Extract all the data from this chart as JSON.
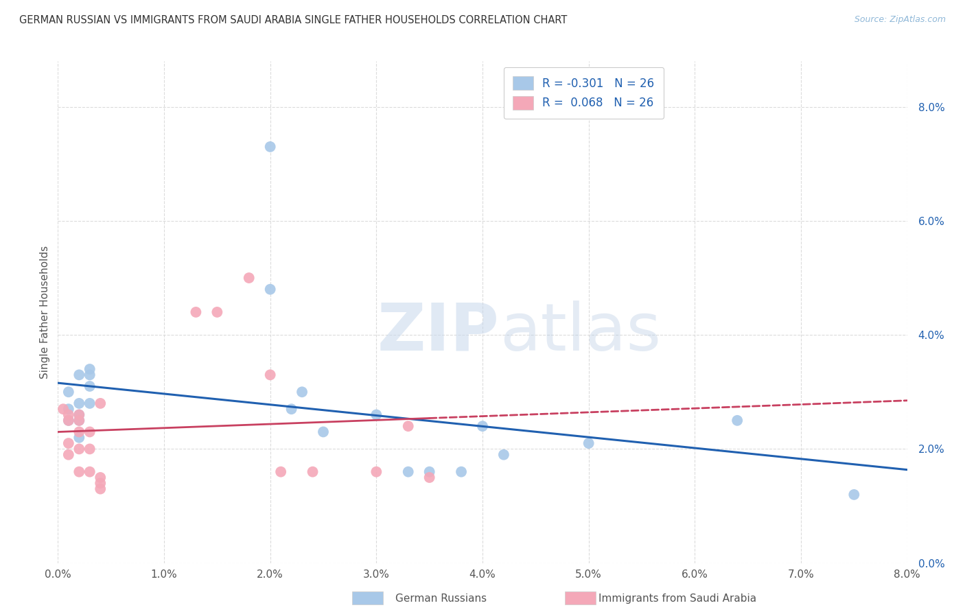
{
  "title": "GERMAN RUSSIAN VS IMMIGRANTS FROM SAUDI ARABIA SINGLE FATHER HOUSEHOLDS CORRELATION CHART",
  "source": "Source: ZipAtlas.com",
  "xlabel_blue": "German Russians",
  "xlabel_pink": "Immigrants from Saudi Arabia",
  "ylabel": "Single Father Households",
  "xlim": [
    0.0,
    0.08
  ],
  "ylim": [
    0.0,
    0.088
  ],
  "xticks": [
    0.0,
    0.01,
    0.02,
    0.03,
    0.04,
    0.05,
    0.06,
    0.07,
    0.08
  ],
  "yticks": [
    0.0,
    0.02,
    0.04,
    0.06,
    0.08
  ],
  "blue_R": "-0.301",
  "blue_N": "26",
  "pink_R": "0.068",
  "pink_N": "26",
  "blue_color": "#a8c8e8",
  "pink_color": "#f4a8b8",
  "blue_line_color": "#2060b0",
  "pink_line_color": "#c84060",
  "blue_scatter": [
    [
      0.001,
      0.027
    ],
    [
      0.002,
      0.028
    ],
    [
      0.002,
      0.026
    ],
    [
      0.001,
      0.03
    ],
    [
      0.001,
      0.025
    ],
    [
      0.002,
      0.033
    ],
    [
      0.003,
      0.033
    ],
    [
      0.003,
      0.031
    ],
    [
      0.003,
      0.034
    ],
    [
      0.002,
      0.025
    ],
    [
      0.002,
      0.022
    ],
    [
      0.003,
      0.028
    ],
    [
      0.02,
      0.073
    ],
    [
      0.02,
      0.048
    ],
    [
      0.022,
      0.027
    ],
    [
      0.023,
      0.03
    ],
    [
      0.025,
      0.023
    ],
    [
      0.03,
      0.026
    ],
    [
      0.033,
      0.016
    ],
    [
      0.035,
      0.016
    ],
    [
      0.038,
      0.016
    ],
    [
      0.04,
      0.024
    ],
    [
      0.042,
      0.019
    ],
    [
      0.05,
      0.021
    ],
    [
      0.064,
      0.025
    ],
    [
      0.075,
      0.012
    ]
  ],
  "pink_scatter": [
    [
      0.0005,
      0.027
    ],
    [
      0.001,
      0.025
    ],
    [
      0.001,
      0.021
    ],
    [
      0.001,
      0.026
    ],
    [
      0.001,
      0.019
    ],
    [
      0.002,
      0.025
    ],
    [
      0.002,
      0.023
    ],
    [
      0.002,
      0.02
    ],
    [
      0.002,
      0.026
    ],
    [
      0.002,
      0.016
    ],
    [
      0.003,
      0.023
    ],
    [
      0.003,
      0.02
    ],
    [
      0.003,
      0.016
    ],
    [
      0.004,
      0.028
    ],
    [
      0.004,
      0.015
    ],
    [
      0.004,
      0.014
    ],
    [
      0.004,
      0.013
    ],
    [
      0.013,
      0.044
    ],
    [
      0.015,
      0.044
    ],
    [
      0.018,
      0.05
    ],
    [
      0.02,
      0.033
    ],
    [
      0.021,
      0.016
    ],
    [
      0.024,
      0.016
    ],
    [
      0.03,
      0.016
    ],
    [
      0.033,
      0.024
    ],
    [
      0.035,
      0.015
    ]
  ],
  "background_color": "#ffffff",
  "grid_color": "#d8d8d8"
}
